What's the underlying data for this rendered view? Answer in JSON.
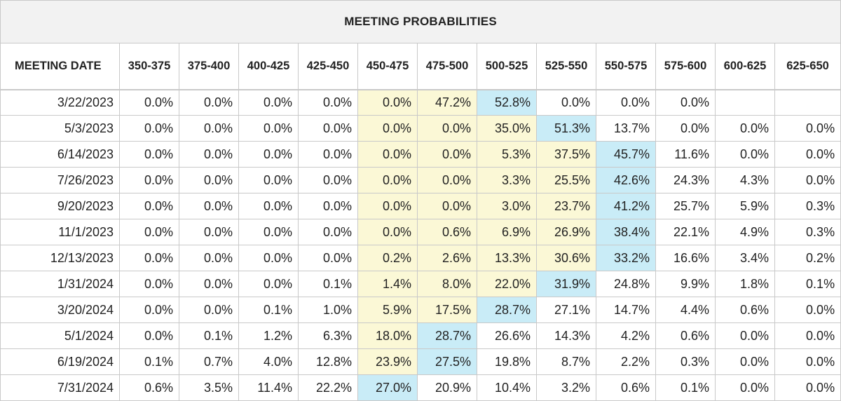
{
  "title": "MEETING PROBABILITIES",
  "columns": [
    "MEETING DATE",
    "350-375",
    "375-400",
    "400-425",
    "425-450",
    "450-475",
    "475-500",
    "500-525",
    "525-550",
    "550-575",
    "575-600",
    "600-625",
    "625-650"
  ],
  "rows": [
    {
      "date": "3/22/2023",
      "values": [
        "0.0%",
        "0.0%",
        "0.0%",
        "0.0%",
        "0.0%",
        "47.2%",
        "52.8%",
        "0.0%",
        "0.0%",
        "0.0%",
        "",
        ""
      ],
      "highlights": [
        "",
        "",
        "",
        "",
        "y",
        "y",
        "b",
        "",
        "",
        "",
        "",
        ""
      ]
    },
    {
      "date": "5/3/2023",
      "values": [
        "0.0%",
        "0.0%",
        "0.0%",
        "0.0%",
        "0.0%",
        "0.0%",
        "35.0%",
        "51.3%",
        "13.7%",
        "0.0%",
        "0.0%",
        "0.0%"
      ],
      "highlights": [
        "",
        "",
        "",
        "",
        "y",
        "y",
        "y",
        "b",
        "",
        "",
        "",
        ""
      ]
    },
    {
      "date": "6/14/2023",
      "values": [
        "0.0%",
        "0.0%",
        "0.0%",
        "0.0%",
        "0.0%",
        "0.0%",
        "5.3%",
        "37.5%",
        "45.7%",
        "11.6%",
        "0.0%",
        "0.0%"
      ],
      "highlights": [
        "",
        "",
        "",
        "",
        "y",
        "y",
        "y",
        "y",
        "b",
        "",
        "",
        ""
      ]
    },
    {
      "date": "7/26/2023",
      "values": [
        "0.0%",
        "0.0%",
        "0.0%",
        "0.0%",
        "0.0%",
        "0.0%",
        "3.3%",
        "25.5%",
        "42.6%",
        "24.3%",
        "4.3%",
        "0.0%"
      ],
      "highlights": [
        "",
        "",
        "",
        "",
        "y",
        "y",
        "y",
        "y",
        "b",
        "",
        "",
        ""
      ]
    },
    {
      "date": "9/20/2023",
      "values": [
        "0.0%",
        "0.0%",
        "0.0%",
        "0.0%",
        "0.0%",
        "0.0%",
        "3.0%",
        "23.7%",
        "41.2%",
        "25.7%",
        "5.9%",
        "0.3%"
      ],
      "highlights": [
        "",
        "",
        "",
        "",
        "y",
        "y",
        "y",
        "y",
        "b",
        "",
        "",
        ""
      ]
    },
    {
      "date": "11/1/2023",
      "values": [
        "0.0%",
        "0.0%",
        "0.0%",
        "0.0%",
        "0.0%",
        "0.6%",
        "6.9%",
        "26.9%",
        "38.4%",
        "22.1%",
        "4.9%",
        "0.3%"
      ],
      "highlights": [
        "",
        "",
        "",
        "",
        "y",
        "y",
        "y",
        "y",
        "b",
        "",
        "",
        ""
      ]
    },
    {
      "date": "12/13/2023",
      "values": [
        "0.0%",
        "0.0%",
        "0.0%",
        "0.0%",
        "0.2%",
        "2.6%",
        "13.3%",
        "30.6%",
        "33.2%",
        "16.6%",
        "3.4%",
        "0.2%"
      ],
      "highlights": [
        "",
        "",
        "",
        "",
        "y",
        "y",
        "y",
        "y",
        "b",
        "",
        "",
        ""
      ]
    },
    {
      "date": "1/31/2024",
      "values": [
        "0.0%",
        "0.0%",
        "0.0%",
        "0.1%",
        "1.4%",
        "8.0%",
        "22.0%",
        "31.9%",
        "24.8%",
        "9.9%",
        "1.8%",
        "0.1%"
      ],
      "highlights": [
        "",
        "",
        "",
        "",
        "y",
        "y",
        "y",
        "b",
        "",
        "",
        "",
        ""
      ]
    },
    {
      "date": "3/20/2024",
      "values": [
        "0.0%",
        "0.0%",
        "0.1%",
        "1.0%",
        "5.9%",
        "17.5%",
        "28.7%",
        "27.1%",
        "14.7%",
        "4.4%",
        "0.6%",
        "0.0%"
      ],
      "highlights": [
        "",
        "",
        "",
        "",
        "y",
        "y",
        "b",
        "",
        "",
        "",
        "",
        ""
      ]
    },
    {
      "date": "5/1/2024",
      "values": [
        "0.0%",
        "0.1%",
        "1.2%",
        "6.3%",
        "18.0%",
        "28.7%",
        "26.6%",
        "14.3%",
        "4.2%",
        "0.6%",
        "0.0%",
        "0.0%"
      ],
      "highlights": [
        "",
        "",
        "",
        "",
        "y",
        "b",
        "",
        "",
        "",
        "",
        "",
        ""
      ]
    },
    {
      "date": "6/19/2024",
      "values": [
        "0.1%",
        "0.7%",
        "4.0%",
        "12.8%",
        "23.9%",
        "27.5%",
        "19.8%",
        "8.7%",
        "2.2%",
        "0.3%",
        "0.0%",
        "0.0%"
      ],
      "highlights": [
        "",
        "",
        "",
        "",
        "y",
        "b",
        "",
        "",
        "",
        "",
        "",
        ""
      ]
    },
    {
      "date": "7/31/2024",
      "values": [
        "0.6%",
        "3.5%",
        "11.4%",
        "22.2%",
        "27.0%",
        "20.9%",
        "10.4%",
        "3.2%",
        "0.6%",
        "0.1%",
        "0.0%",
        "0.0%"
      ],
      "highlights": [
        "",
        "",
        "",
        "",
        "b",
        "",
        "",
        "",
        "",
        "",
        "",
        ""
      ]
    }
  ],
  "colors": {
    "current_range_highlight": "#fbf8d6",
    "max_probability_highlight": "#c9ecf7",
    "title_background": "#f2f2f2",
    "grid_line": "#c9c9c9"
  }
}
